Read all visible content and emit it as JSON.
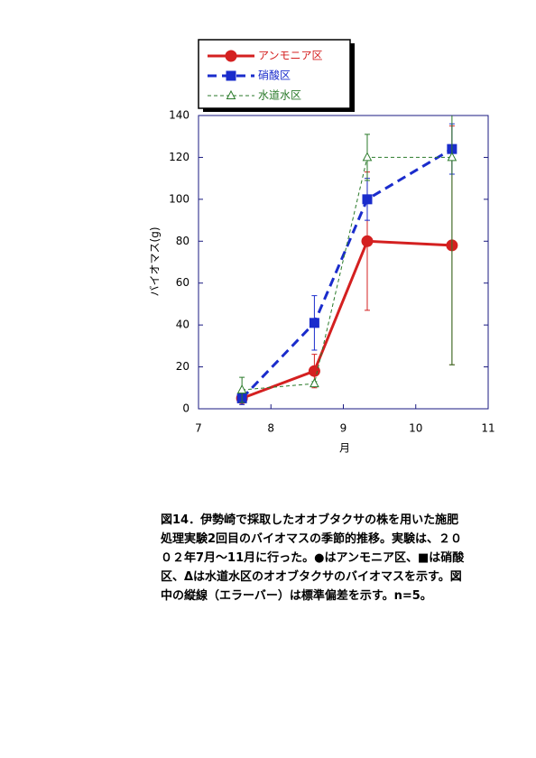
{
  "chart_data": {
    "type": "line",
    "x_label": "月",
    "y_label": "バイオマス(g)",
    "x": [
      7.6,
      8.6,
      9.33,
      10.5
    ],
    "series": [
      {
        "name": "アンモニア区",
        "color": "#d42020",
        "marker": "circle",
        "dash": "solid",
        "width": 3,
        "values": [
          5,
          18,
          80,
          78
        ],
        "errors": [
          2,
          8,
          33,
          57
        ]
      },
      {
        "name": "硝酸区",
        "color": "#1a2ccc",
        "marker": "square",
        "dash": "dashed",
        "width": 3,
        "values": [
          5,
          41,
          100,
          124
        ],
        "errors": [
          3,
          13,
          10,
          12
        ]
      },
      {
        "name": "水道水区",
        "color": "#2a7a2a",
        "marker": "triangle",
        "dash": "dotted",
        "width": 1,
        "values": [
          9,
          12,
          120,
          120
        ],
        "errors": [
          6,
          1,
          11,
          99
        ]
      }
    ],
    "xlim": [
      7,
      11
    ],
    "xticks": [
      7,
      8,
      9,
      10,
      11
    ],
    "ylim": [
      0,
      140
    ],
    "yticks": [
      0,
      20,
      40,
      60,
      80,
      100,
      120,
      140
    ],
    "caption": [
      "図14．伊勢崎で採取したオオブタクサの株を用いた施肥",
      "処理実験2回目のバイオマスの季節的推移。実験は、２０",
      "０２年7月～11月に行った。●はアンモニア区、■は硝酸",
      "区、Δは水道水区のオオブタクサのバイオマスを示す。図",
      "中の縦線（エラーバー）は標準偏差を示す。n=5。"
    ]
  }
}
